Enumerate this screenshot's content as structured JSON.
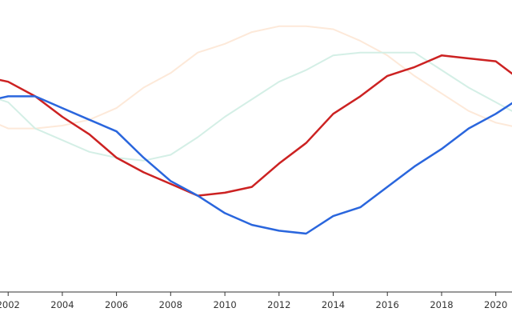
{
  "chart_data": {
    "type": "line",
    "title": "",
    "xlabel": "",
    "ylabel": "",
    "xlim": [
      2001.7,
      2020.6
    ],
    "ylim": [
      0,
      100
    ],
    "grid": false,
    "legend": "none",
    "x_ticks": [
      "2002",
      "2004",
      "2006",
      "2008",
      "2010",
      "2012",
      "2014",
      "2016",
      "2018",
      "2020"
    ],
    "x": [
      2001,
      2002,
      2003,
      2004,
      2005,
      2006,
      2007,
      2008,
      2009,
      2010,
      2011,
      2012,
      2013,
      2014,
      2015,
      2016,
      2017,
      2018,
      2019,
      2020,
      2021
    ],
    "series": [
      {
        "color": "#fde9d9",
        "emphasis": "faded",
        "values": [
          60,
          56,
          56,
          57,
          59,
          63,
          70,
          75,
          82,
          85,
          89,
          91,
          91,
          90,
          86,
          81,
          74,
          68,
          62,
          58,
          56
        ]
      },
      {
        "color": "#d4efe6",
        "emphasis": "faded",
        "values": [
          68,
          65,
          56,
          52,
          48,
          46,
          45,
          47,
          53,
          60,
          66,
          72,
          76,
          81,
          82,
          82,
          82,
          76,
          70,
          65,
          60
        ]
      },
      {
        "color": "#cc2222",
        "emphasis": "highlighted",
        "values": [
          74,
          72,
          67,
          60,
          54,
          46,
          41,
          37,
          33,
          34,
          36,
          44,
          51,
          61,
          67,
          74,
          77,
          81,
          80,
          79,
          72
        ]
      },
      {
        "color": "#2a66dd",
        "emphasis": "highlighted",
        "values": [
          65,
          67,
          67,
          63,
          59,
          55,
          46,
          38,
          33,
          27,
          23,
          21,
          20,
          26,
          29,
          36,
          43,
          49,
          56,
          61,
          67
        ]
      }
    ]
  }
}
